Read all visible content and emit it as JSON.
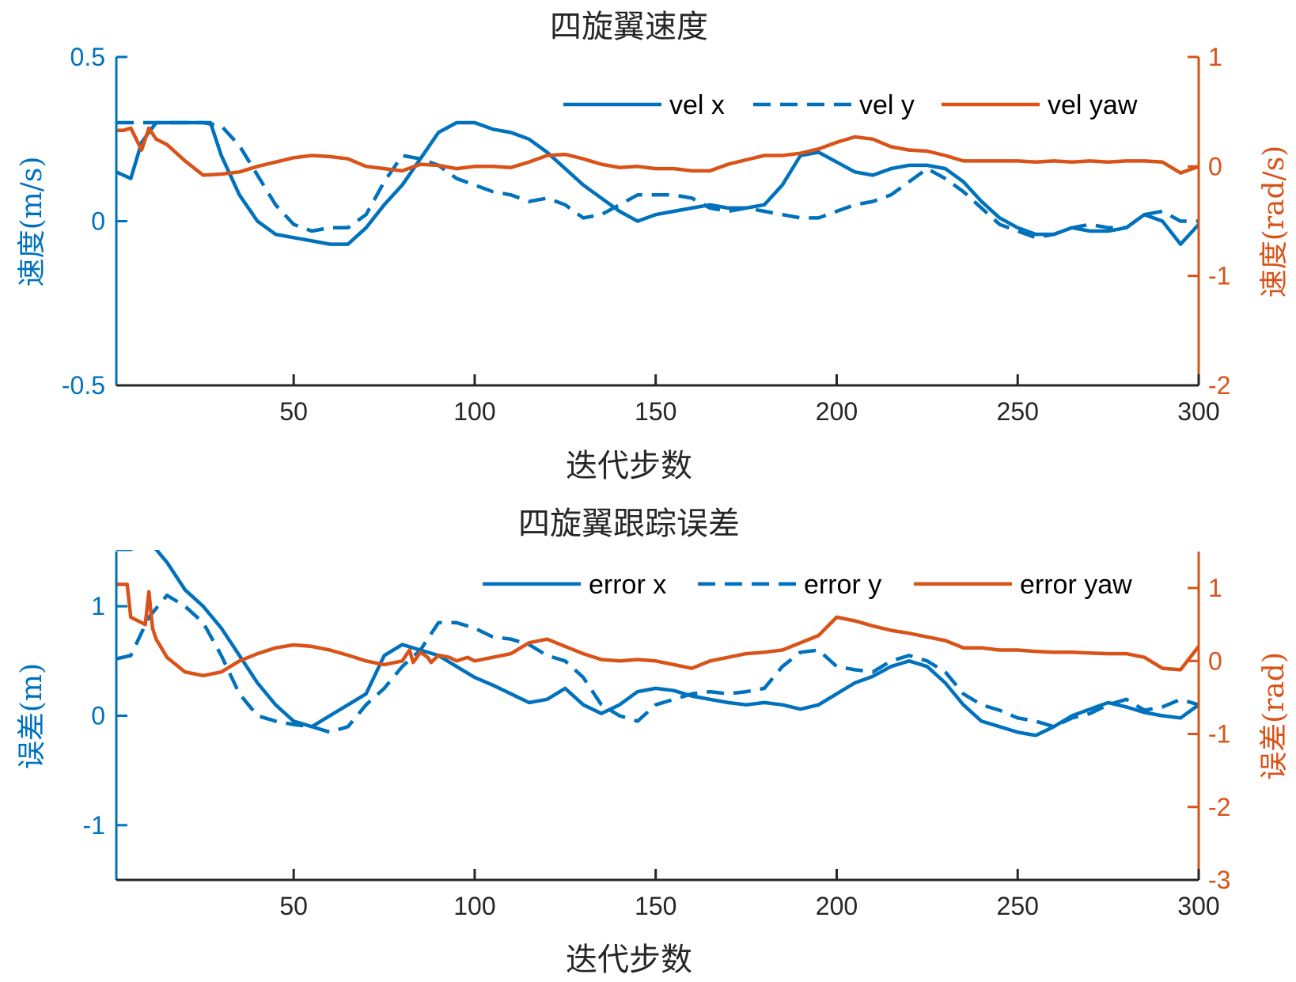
{
  "colors": {
    "left_axis": "#0072BD",
    "right_axis": "#D95319",
    "text": "#262626"
  },
  "chart_data": [
    {
      "type": "line",
      "title": "四旋翼速度",
      "xlabel": "迭代步数",
      "ylabel": "速度(m/s)",
      "ylabel_right": "速度(rad/s)",
      "xlim": [
        1,
        300
      ],
      "ylim": [
        -0.5,
        0.5
      ],
      "ylim_right": [
        -2,
        1
      ],
      "xticks": [
        50,
        100,
        150,
        200,
        250,
        300
      ],
      "xtick_labels": [
        "50",
        "100",
        "150",
        "200",
        "250",
        "300"
      ],
      "yticks": [
        -0.5,
        0,
        0.5
      ],
      "ytick_labels": [
        "-0.5",
        "0",
        "0.5"
      ],
      "yticks_right": [
        -2,
        -1,
        0,
        1
      ],
      "ytick_labels_right": [
        "-2",
        "-1",
        "0",
        "1"
      ],
      "legend_position": "top-right",
      "grid": false,
      "series": [
        {
          "name": "vel x",
          "axis": "left",
          "style": "solid",
          "color": "#0072BD",
          "x": [
            1,
            5,
            8,
            12,
            15,
            20,
            25,
            27,
            30,
            35,
            40,
            45,
            50,
            55,
            60,
            65,
            70,
            75,
            80,
            85,
            90,
            95,
            100,
            105,
            110,
            115,
            120,
            125,
            130,
            135,
            140,
            145,
            150,
            155,
            160,
            165,
            170,
            175,
            180,
            185,
            190,
            195,
            200,
            205,
            210,
            215,
            220,
            225,
            230,
            235,
            240,
            245,
            250,
            255,
            260,
            265,
            270,
            275,
            280,
            285,
            290,
            295,
            300
          ],
          "y": [
            0.15,
            0.13,
            0.24,
            0.3,
            0.3,
            0.3,
            0.3,
            0.3,
            0.2,
            0.08,
            0.0,
            -0.04,
            -0.05,
            -0.06,
            -0.07,
            -0.07,
            -0.02,
            0.05,
            0.11,
            0.19,
            0.27,
            0.3,
            0.3,
            0.28,
            0.27,
            0.25,
            0.21,
            0.16,
            0.11,
            0.07,
            0.03,
            0.0,
            0.02,
            0.03,
            0.04,
            0.05,
            0.04,
            0.04,
            0.05,
            0.11,
            0.2,
            0.21,
            0.18,
            0.15,
            0.14,
            0.16,
            0.17,
            0.17,
            0.16,
            0.12,
            0.06,
            0.01,
            -0.02,
            -0.04,
            -0.04,
            -0.02,
            -0.03,
            -0.03,
            -0.02,
            0.02,
            0.0,
            -0.07,
            -0.01
          ]
        },
        {
          "name": "vel y",
          "axis": "left",
          "style": "dashed",
          "color": "#0072BD",
          "x": [
            1,
            5,
            10,
            15,
            20,
            25,
            30,
            35,
            40,
            45,
            50,
            55,
            60,
            65,
            70,
            75,
            80,
            85,
            90,
            95,
            100,
            105,
            110,
            115,
            120,
            125,
            130,
            135,
            140,
            145,
            150,
            155,
            160,
            165,
            170,
            175,
            180,
            185,
            190,
            195,
            200,
            205,
            210,
            215,
            220,
            225,
            230,
            235,
            240,
            245,
            250,
            255,
            260,
            265,
            270,
            275,
            280,
            285,
            290,
            295,
            300
          ],
          "y": [
            0.3,
            0.3,
            0.3,
            0.3,
            0.3,
            0.3,
            0.29,
            0.23,
            0.14,
            0.05,
            -0.01,
            -0.03,
            -0.02,
            -0.02,
            0.02,
            0.12,
            0.2,
            0.19,
            0.17,
            0.13,
            0.11,
            0.09,
            0.08,
            0.06,
            0.07,
            0.05,
            0.01,
            0.02,
            0.05,
            0.08,
            0.08,
            0.08,
            0.07,
            0.04,
            0.03,
            0.04,
            0.03,
            0.02,
            0.01,
            0.01,
            0.03,
            0.05,
            0.06,
            0.08,
            0.12,
            0.16,
            0.13,
            0.09,
            0.04,
            -0.01,
            -0.03,
            -0.05,
            -0.04,
            -0.02,
            -0.01,
            -0.02,
            -0.02,
            0.02,
            0.03,
            0.0,
            0.0
          ]
        },
        {
          "name": "vel yaw",
          "axis": "right",
          "style": "solid",
          "color": "#D95319",
          "x": [
            1,
            3,
            5,
            8,
            10,
            12,
            15,
            20,
            25,
            30,
            35,
            40,
            45,
            50,
            55,
            60,
            65,
            70,
            75,
            80,
            85,
            90,
            95,
            100,
            105,
            110,
            115,
            120,
            125,
            130,
            135,
            140,
            145,
            150,
            155,
            160,
            165,
            170,
            175,
            180,
            185,
            190,
            195,
            200,
            205,
            210,
            215,
            220,
            225,
            230,
            235,
            240,
            245,
            250,
            255,
            260,
            265,
            270,
            275,
            280,
            285,
            290,
            295,
            300
          ],
          "y": [
            0.33,
            0.33,
            0.35,
            0.15,
            0.35,
            0.25,
            0.2,
            0.05,
            -0.08,
            -0.07,
            -0.05,
            0.0,
            0.04,
            0.08,
            0.1,
            0.09,
            0.07,
            0.0,
            -0.02,
            -0.04,
            0.02,
            0.01,
            -0.02,
            0.0,
            0.0,
            -0.01,
            0.04,
            0.1,
            0.11,
            0.07,
            0.02,
            -0.01,
            0.0,
            -0.02,
            -0.02,
            -0.04,
            -0.04,
            0.02,
            0.06,
            0.1,
            0.1,
            0.12,
            0.16,
            0.22,
            0.27,
            0.25,
            0.18,
            0.15,
            0.14,
            0.1,
            0.05,
            0.05,
            0.05,
            0.05,
            0.04,
            0.05,
            0.04,
            0.05,
            0.04,
            0.05,
            0.05,
            0.04,
            -0.06,
            0.0
          ]
        }
      ]
    },
    {
      "type": "line",
      "title": "四旋翼跟踪误差",
      "xlabel": "迭代步数",
      "ylabel": "误差(m)",
      "ylabel_right": "误差(rad)",
      "xlim": [
        1,
        300
      ],
      "ylim": [
        -1.5,
        1.5
      ],
      "ylim_right": [
        -3,
        1.5
      ],
      "xticks": [
        50,
        100,
        150,
        200,
        250,
        300
      ],
      "xtick_labels": [
        "50",
        "100",
        "150",
        "200",
        "250",
        "300"
      ],
      "yticks": [
        -1,
        0,
        1
      ],
      "ytick_labels": [
        "-1",
        "0",
        "1"
      ],
      "yticks_right": [
        -3,
        -2,
        -1,
        0,
        1
      ],
      "ytick_labels_right": [
        "-3",
        "-2",
        "-1",
        "0",
        "1"
      ],
      "legend_position": "top-right",
      "grid": false,
      "series": [
        {
          "name": "error x",
          "axis": "left",
          "style": "solid",
          "color": "#0072BD",
          "x": [
            1,
            5,
            10,
            15,
            20,
            25,
            30,
            35,
            40,
            45,
            50,
            55,
            60,
            65,
            70,
            75,
            80,
            85,
            90,
            95,
            100,
            105,
            110,
            115,
            120,
            125,
            130,
            135,
            140,
            145,
            150,
            155,
            160,
            165,
            170,
            175,
            180,
            185,
            190,
            195,
            200,
            205,
            210,
            215,
            220,
            225,
            230,
            235,
            240,
            245,
            250,
            255,
            260,
            265,
            270,
            275,
            280,
            285,
            290,
            295,
            300
          ],
          "y": [
            1.52,
            1.52,
            1.6,
            1.4,
            1.15,
            1.0,
            0.8,
            0.55,
            0.3,
            0.1,
            -0.05,
            -0.1,
            0.0,
            0.1,
            0.2,
            0.55,
            0.65,
            0.6,
            0.55,
            0.45,
            0.35,
            0.28,
            0.2,
            0.12,
            0.15,
            0.25,
            0.1,
            0.02,
            0.1,
            0.22,
            0.25,
            0.23,
            0.18,
            0.15,
            0.12,
            0.1,
            0.12,
            0.1,
            0.06,
            0.1,
            0.2,
            0.3,
            0.36,
            0.45,
            0.5,
            0.45,
            0.3,
            0.1,
            -0.05,
            -0.1,
            -0.15,
            -0.18,
            -0.1,
            0.0,
            0.06,
            0.12,
            0.08,
            0.03,
            0.0,
            -0.02,
            0.1
          ]
        },
        {
          "name": "error y",
          "axis": "left",
          "style": "dashed",
          "color": "#0072BD",
          "x": [
            1,
            5,
            10,
            15,
            20,
            25,
            30,
            35,
            40,
            45,
            50,
            55,
            60,
            65,
            70,
            75,
            80,
            85,
            90,
            95,
            100,
            105,
            110,
            115,
            120,
            125,
            130,
            135,
            140,
            145,
            150,
            155,
            160,
            165,
            170,
            175,
            180,
            185,
            190,
            195,
            200,
            205,
            210,
            215,
            220,
            225,
            230,
            235,
            240,
            245,
            250,
            255,
            260,
            265,
            270,
            275,
            280,
            285,
            290,
            295,
            300
          ],
          "y": [
            0.52,
            0.55,
            0.9,
            1.1,
            1.0,
            0.85,
            0.55,
            0.2,
            0.0,
            -0.05,
            -0.08,
            -0.1,
            -0.15,
            -0.1,
            0.1,
            0.25,
            0.45,
            0.6,
            0.85,
            0.85,
            0.8,
            0.72,
            0.7,
            0.65,
            0.55,
            0.5,
            0.35,
            0.1,
            0.0,
            -0.05,
            0.1,
            0.15,
            0.2,
            0.22,
            0.2,
            0.22,
            0.25,
            0.45,
            0.58,
            0.6,
            0.45,
            0.42,
            0.4,
            0.5,
            0.55,
            0.5,
            0.4,
            0.2,
            0.1,
            0.05,
            -0.02,
            -0.05,
            -0.1,
            -0.02,
            0.02,
            0.1,
            0.15,
            0.05,
            0.08,
            0.15,
            0.1
          ]
        },
        {
          "name": "error yaw",
          "axis": "right",
          "style": "solid",
          "color": "#D95319",
          "x": [
            1,
            4,
            5,
            7,
            9,
            10,
            11,
            12,
            15,
            20,
            25,
            30,
            35,
            40,
            45,
            50,
            55,
            60,
            65,
            70,
            75,
            80,
            82,
            83,
            85,
            87,
            88,
            90,
            93,
            95,
            98,
            100,
            105,
            110,
            115,
            120,
            125,
            130,
            135,
            140,
            145,
            150,
            155,
            160,
            165,
            170,
            175,
            180,
            185,
            190,
            195,
            200,
            205,
            210,
            215,
            220,
            225,
            230,
            235,
            240,
            245,
            250,
            255,
            260,
            265,
            270,
            275,
            280,
            285,
            290,
            295,
            300
          ],
          "y": [
            1.05,
            1.05,
            0.6,
            0.55,
            0.5,
            0.95,
            0.45,
            0.3,
            0.05,
            -0.15,
            -0.2,
            -0.15,
            0.0,
            0.1,
            0.18,
            0.22,
            0.2,
            0.15,
            0.08,
            0.0,
            -0.05,
            0.0,
            0.15,
            -0.02,
            0.12,
            0.05,
            -0.02,
            0.08,
            0.05,
            0.0,
            0.05,
            0.0,
            0.05,
            0.1,
            0.25,
            0.3,
            0.2,
            0.1,
            0.02,
            0.0,
            0.02,
            0.0,
            -0.05,
            -0.1,
            0.0,
            0.05,
            0.1,
            0.12,
            0.15,
            0.25,
            0.35,
            0.6,
            0.55,
            0.48,
            0.42,
            0.38,
            0.33,
            0.28,
            0.18,
            0.18,
            0.15,
            0.15,
            0.13,
            0.12,
            0.12,
            0.11,
            0.1,
            0.1,
            0.05,
            -0.1,
            -0.12,
            0.2
          ]
        }
      ]
    }
  ]
}
